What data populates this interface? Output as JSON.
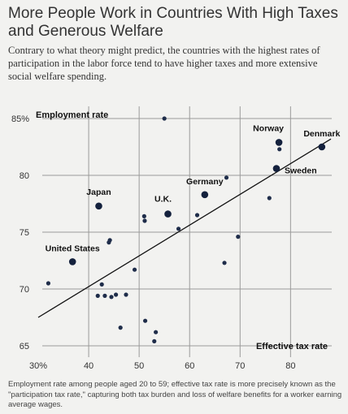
{
  "title": "More People Work in Countries With High Taxes and Generous Welfare",
  "subtitle": "Contrary to what theory might predict, the countries with the highest rates of participation in the labor force tend to have higher taxes and more extensive social welfare spending.",
  "footnote": "Employment rate among people aged 20 to 59; effective tax rate is more precisely known as the \"participation tax rate,\" capturing both tax burden and loss of welfare benefits for a worker earning average wages.",
  "chart_data": {
    "type": "scatter",
    "xlabel": "Effective tax rate",
    "ylabel": "Employment rate",
    "xlim": [
      30,
      88
    ],
    "ylim": [
      65,
      85.5
    ],
    "x_ticks": [
      {
        "value": 30,
        "label": "30%"
      },
      {
        "value": 40,
        "label": "40"
      },
      {
        "value": 50,
        "label": "50"
      },
      {
        "value": 60,
        "label": "60"
      },
      {
        "value": 70,
        "label": "70"
      },
      {
        "value": 80,
        "label": "80"
      }
    ],
    "y_ticks": [
      {
        "value": 85,
        "label": "85%"
      },
      {
        "value": 80,
        "label": "80"
      },
      {
        "value": 75,
        "label": "75"
      },
      {
        "value": 70,
        "label": "70"
      },
      {
        "value": 65,
        "label": "65"
      }
    ],
    "grid": true,
    "trend_line": {
      "x": [
        30,
        88
      ],
      "y": [
        67.5,
        83.2
      ]
    },
    "labeled_points": [
      {
        "name": "Denmark",
        "x": 86.2,
        "y": 82.5
      },
      {
        "name": "Norway",
        "x": 77.7,
        "y": 82.9
      },
      {
        "name": "Sweden",
        "x": 77.2,
        "y": 80.6
      },
      {
        "name": "Germany",
        "x": 63.0,
        "y": 78.3
      },
      {
        "name": "U.K.",
        "x": 55.7,
        "y": 76.6
      },
      {
        "name": "Japan",
        "x": 42.0,
        "y": 77.3
      },
      {
        "name": "United States",
        "x": 36.8,
        "y": 72.4
      }
    ],
    "other_points": [
      {
        "x": 55.0,
        "y": 85.0
      },
      {
        "x": 77.8,
        "y": 82.3
      },
      {
        "x": 67.3,
        "y": 79.8
      },
      {
        "x": 75.8,
        "y": 78.0
      },
      {
        "x": 51.0,
        "y": 76.4
      },
      {
        "x": 51.1,
        "y": 76.0
      },
      {
        "x": 61.5,
        "y": 76.5
      },
      {
        "x": 57.8,
        "y": 75.3
      },
      {
        "x": 44.2,
        "y": 74.3
      },
      {
        "x": 44.0,
        "y": 74.1
      },
      {
        "x": 69.6,
        "y": 74.6
      },
      {
        "x": 66.9,
        "y": 72.3
      },
      {
        "x": 32.0,
        "y": 70.5
      },
      {
        "x": 49.1,
        "y": 71.7
      },
      {
        "x": 42.6,
        "y": 70.4
      },
      {
        "x": 41.8,
        "y": 69.4
      },
      {
        "x": 43.2,
        "y": 69.4
      },
      {
        "x": 44.5,
        "y": 69.3
      },
      {
        "x": 45.4,
        "y": 69.5
      },
      {
        "x": 47.4,
        "y": 69.5
      },
      {
        "x": 46.3,
        "y": 66.6
      },
      {
        "x": 51.2,
        "y": 67.2
      },
      {
        "x": 53.3,
        "y": 66.2
      },
      {
        "x": 53.0,
        "y": 65.4
      }
    ]
  }
}
